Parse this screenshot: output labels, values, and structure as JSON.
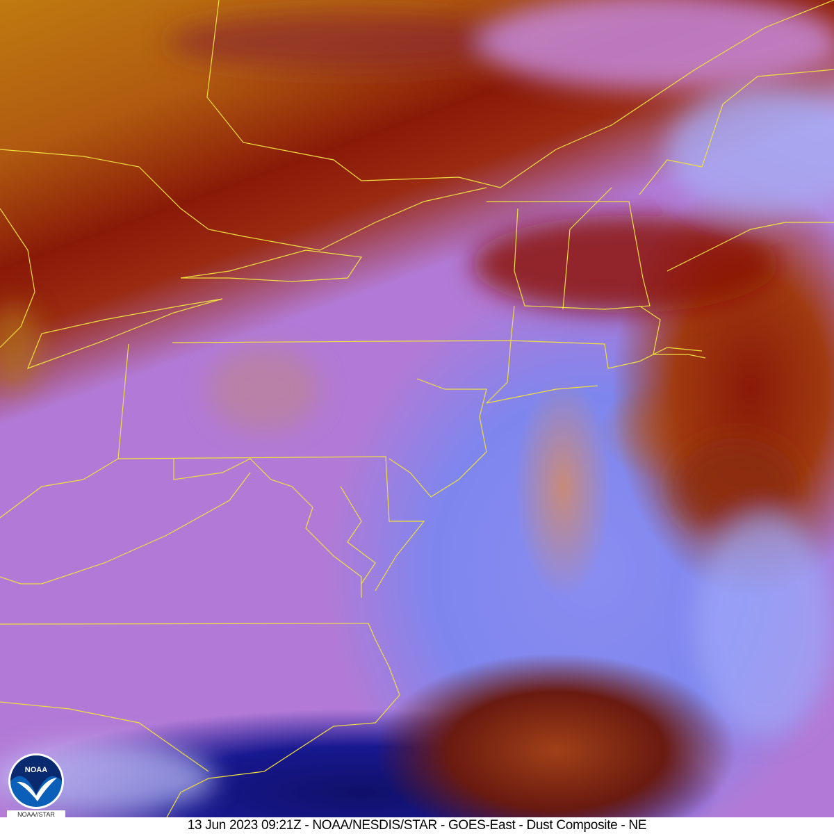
{
  "caption": "13 Jun 2023 09:21Z - NOAA/NESDIS/STAR - GOES-East - Dust Composite - NE",
  "logo": {
    "emblem_text": "NOAA",
    "label": "NOAA//STAR"
  },
  "colors": {
    "border_lines": "#f0e040",
    "land_pink": "#b27ad6",
    "dust_brown": "#b05a10",
    "cloud_red": "#8a1a08",
    "ocean_blue": "#7e86ee",
    "deep_blue": "#181890"
  }
}
